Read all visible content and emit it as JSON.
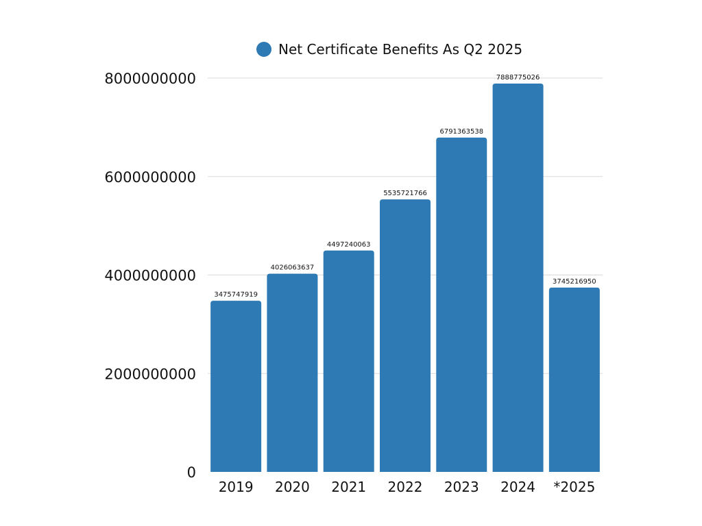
{
  "chart_data": {
    "type": "bar",
    "title": "",
    "xlabel": "",
    "ylabel": "",
    "categories": [
      "2019",
      "2020",
      "2021",
      "2022",
      "2023",
      "2024",
      "*2025"
    ],
    "series": [
      {
        "name": "Net Certificate Benefits As Q2 2025",
        "values": [
          3475747919,
          4026063637,
          4497240063,
          5535721766,
          6791363538,
          7888775026,
          3745216950
        ],
        "labels": [
          "3475747919",
          "4026063637",
          "4497240063",
          "5535721766",
          "6791363538",
          "7888775026",
          "3745216950"
        ]
      }
    ],
    "ylim": [
      0,
      8000000000
    ],
    "yticks": [
      0,
      2000000000,
      4000000000,
      6000000000,
      8000000000
    ],
    "ytick_labels": [
      "0",
      "2000000000",
      "4000000000",
      "6000000000",
      "8000000000"
    ],
    "grid": true,
    "legend_position": "top",
    "colors": {
      "bar": "#2e7ab5",
      "grid": "#d9d9d9",
      "text": "#111111"
    }
  }
}
